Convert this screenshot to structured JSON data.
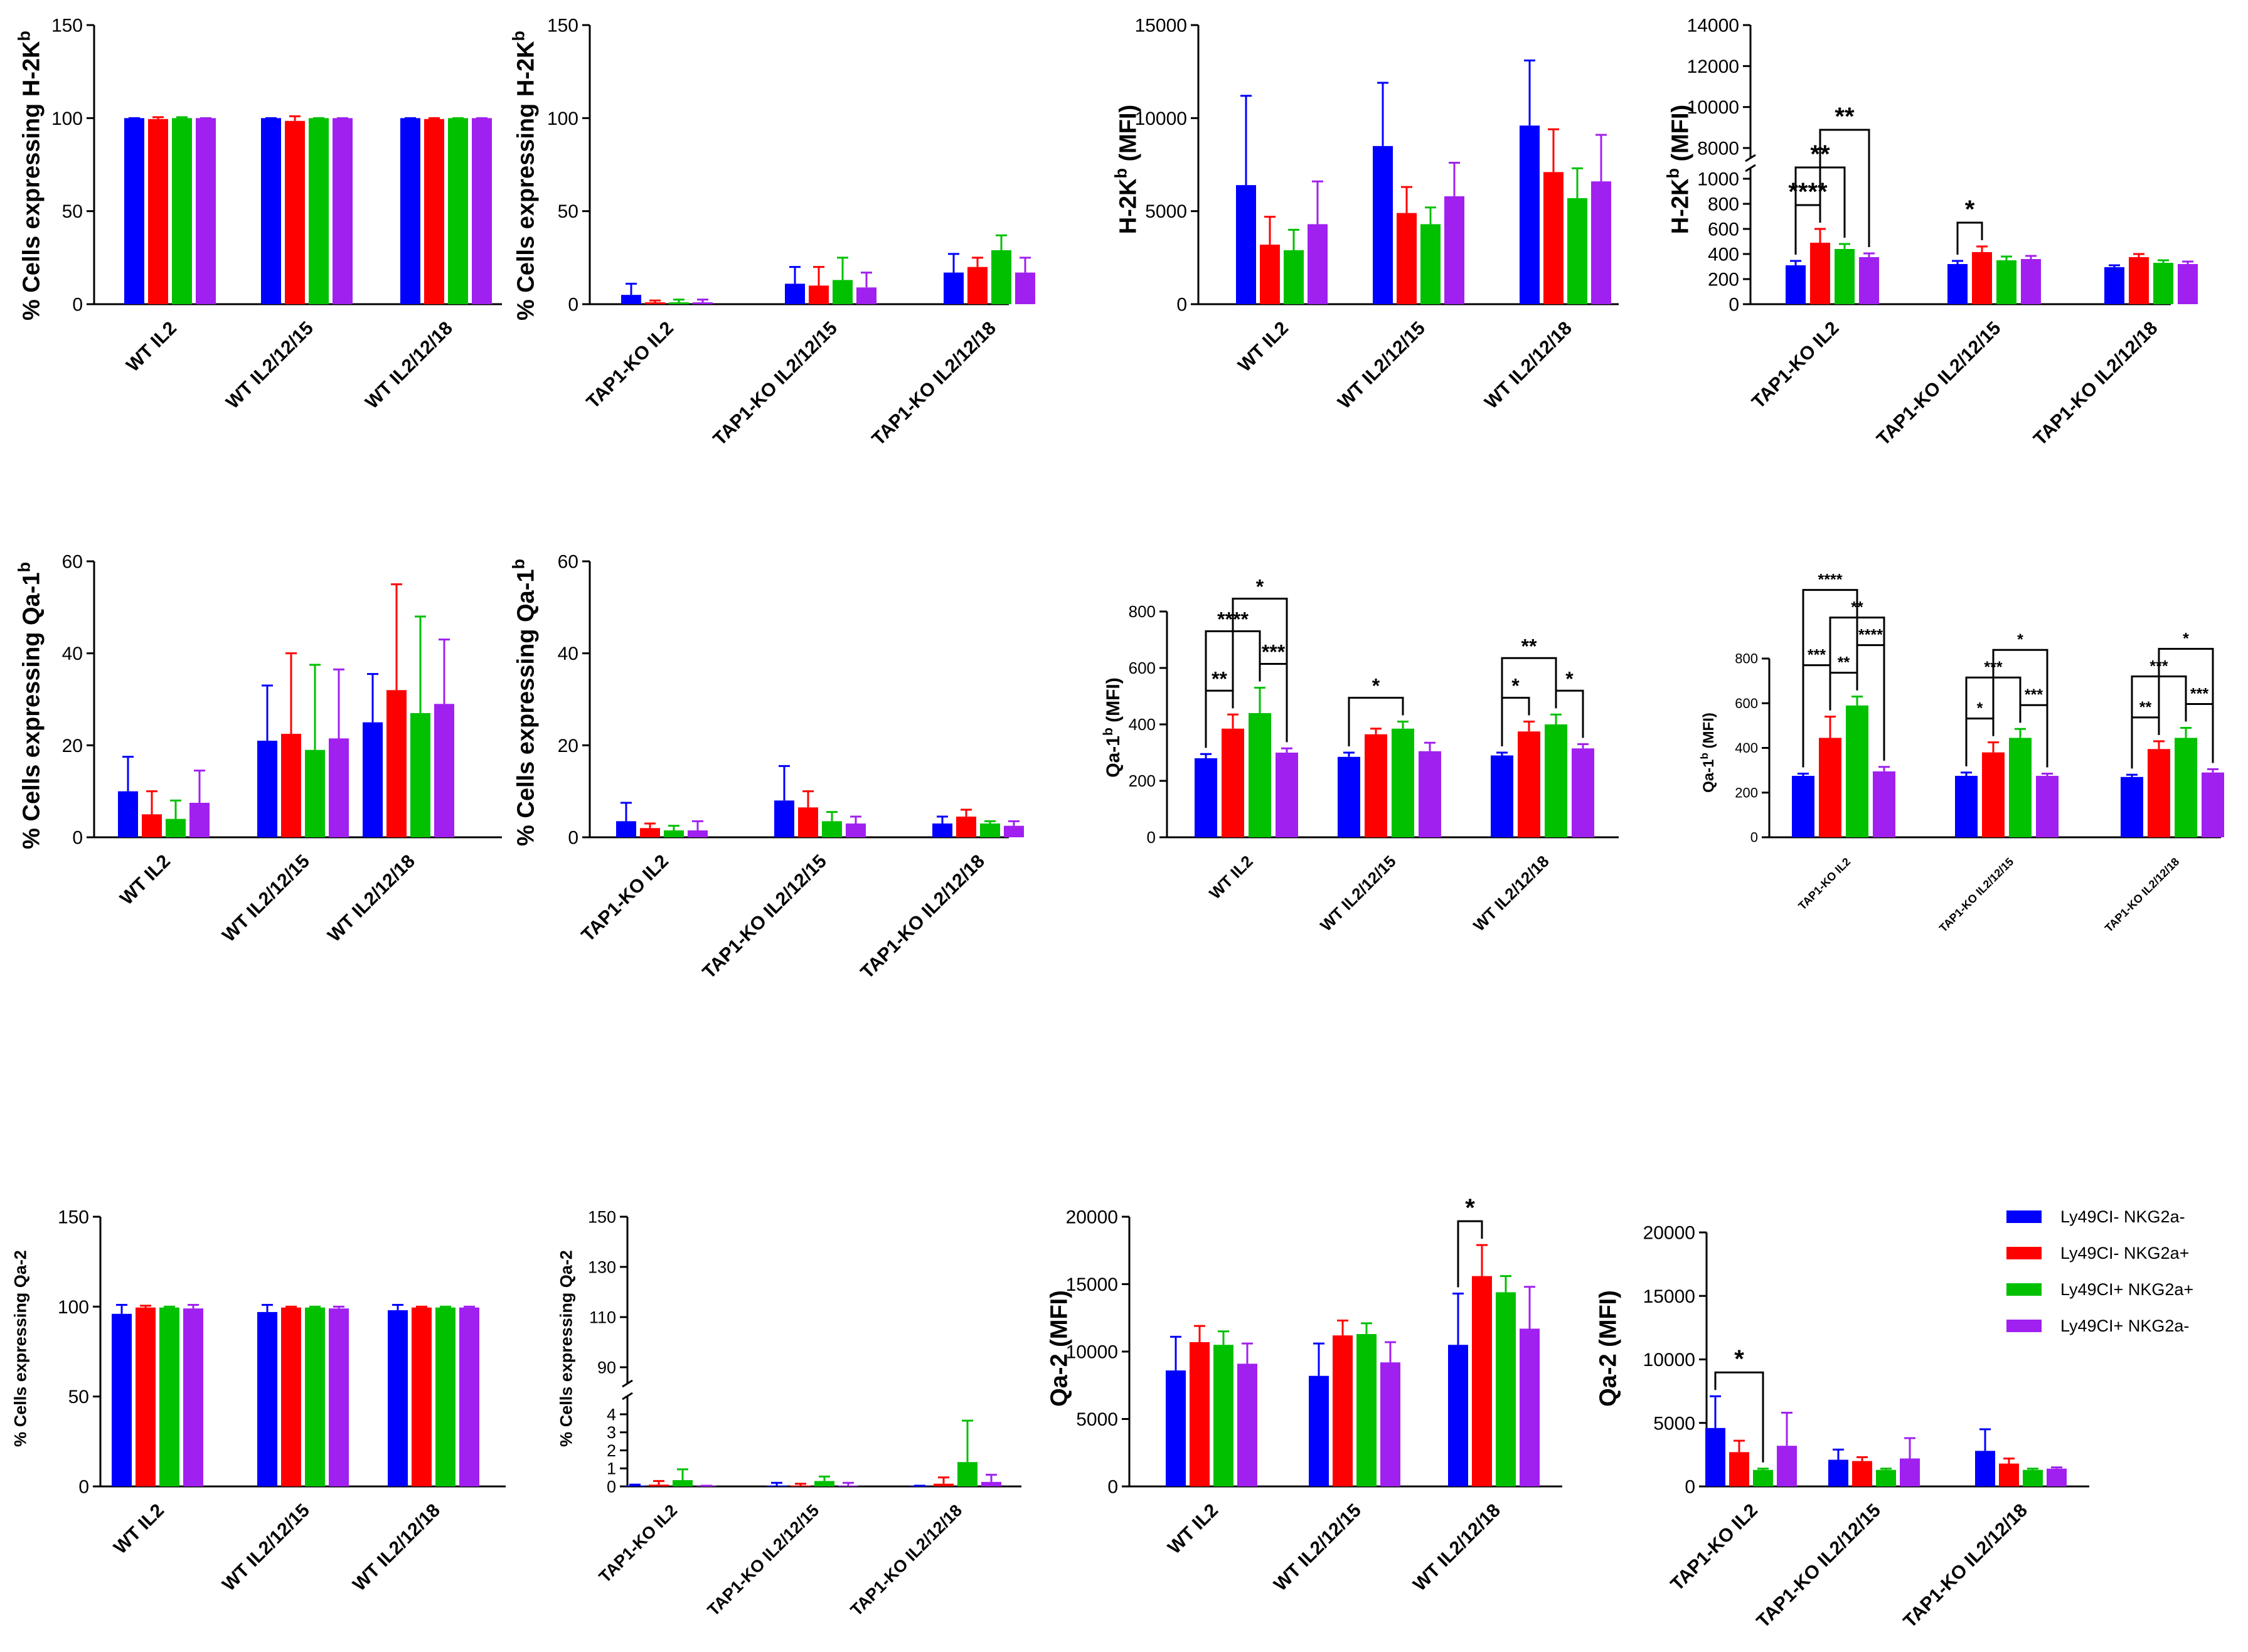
{
  "colors": {
    "blue": "#0000ff",
    "red": "#ff0000",
    "green": "#00c000",
    "purple": "#a020f0",
    "axis": "#000000"
  },
  "legend": {
    "entries": [
      {
        "label": "Ly49CI- NKG2a-",
        "color": "#0000ff"
      },
      {
        "label": "Ly49CI- NKG2a+",
        "color": "#ff0000"
      },
      {
        "label": "Ly49CI+ NKG2a+",
        "color": "#00c000"
      },
      {
        "label": "Ly49CI+ NKG2a-",
        "color": "#a020f0"
      }
    ]
  },
  "chart_data": [
    {
      "id": "A1",
      "type": "bar",
      "ylabel": "% Cells expressing H-2K",
      "ylabel_sup": "b",
      "ylim": [
        0,
        150
      ],
      "ticks": [
        0,
        50,
        100,
        150
      ],
      "categories": [
        "WT IL2",
        "WT IL2/12/15",
        "WT IL2/12/18"
      ],
      "values": [
        [
          100,
          99.5,
          100,
          100
        ],
        [
          100,
          98.5,
          100,
          100
        ],
        [
          100,
          99.5,
          100,
          100
        ]
      ],
      "errors": [
        [
          0,
          1,
          0.5,
          0
        ],
        [
          0,
          2.5,
          0,
          0
        ],
        [
          0,
          0.5,
          0,
          0
        ]
      ],
      "sig": []
    },
    {
      "id": "A2",
      "type": "bar",
      "ylabel": "% Cells expressing H-2K",
      "ylabel_sup": "b",
      "ylim": [
        0,
        150
      ],
      "ticks": [
        0,
        50,
        100,
        150
      ],
      "categories": [
        "TAP1-KO IL2",
        "TAP1-KO IL2/12/15",
        "TAP1-KO IL2/12/18"
      ],
      "values": [
        [
          5,
          1,
          1,
          1
        ],
        [
          11,
          10,
          13,
          9
        ],
        [
          17,
          20,
          29,
          17
        ]
      ],
      "errors": [
        [
          6,
          1,
          1.5,
          1.5
        ],
        [
          9,
          10,
          12,
          8
        ],
        [
          10,
          5,
          8,
          8
        ]
      ],
      "sig": []
    },
    {
      "id": "A3",
      "type": "bar",
      "ylabel": "H-2K",
      "ylabel_sup": "b",
      "ylabel_suffix": " (MFI)",
      "ylim": [
        0,
        15000
      ],
      "ticks": [
        0,
        5000,
        10000,
        15000
      ],
      "categories": [
        "WT IL2",
        "WT IL2/12/15",
        "WT IL2/12/18"
      ],
      "values": [
        [
          6400,
          3200,
          2900,
          4300
        ],
        [
          8500,
          4900,
          4300,
          5800
        ],
        [
          9600,
          7100,
          5700,
          6600
        ]
      ],
      "errors": [
        [
          4800,
          1500,
          1100,
          2300
        ],
        [
          3400,
          1400,
          900,
          1800
        ],
        [
          3500,
          2300,
          1600,
          2500
        ]
      ],
      "sig": []
    },
    {
      "id": "A4",
      "type": "bar",
      "ylabel": "H-2K",
      "ylabel_sup": "b",
      "ylabel_suffix": " (MFI)",
      "ylim": [
        0,
        14000
      ],
      "break": [
        1000,
        8000
      ],
      "ticks": [
        0,
        200,
        400,
        600,
        800,
        1000,
        8000,
        10000,
        12000,
        14000
      ],
      "categories": [
        "TAP1-KO IL2",
        "TAP1-KO IL2/12/15",
        "TAP1-KO IL2/12/18"
      ],
      "values": [
        [
          310,
          490,
          440,
          375
        ],
        [
          320,
          415,
          350,
          360
        ],
        [
          295,
          375,
          330,
          320
        ]
      ],
      "errors": [
        [
          35,
          110,
          40,
          30
        ],
        [
          25,
          45,
          30,
          25
        ],
        [
          15,
          25,
          20,
          20
        ]
      ],
      "sig": [
        {
          "g": 0,
          "a": 0,
          "b": 1,
          "label": "****",
          "level": 0
        },
        {
          "g": 0,
          "a": 0,
          "b": 2,
          "label": "**",
          "level": 1
        },
        {
          "g": 0,
          "a": 1,
          "b": 3,
          "label": "**",
          "level": 2
        },
        {
          "g": 1,
          "a": 0,
          "b": 1,
          "label": "*",
          "level": 0
        }
      ]
    },
    {
      "id": "B1",
      "type": "bar",
      "ylabel": "% Cells expressing Qa-1",
      "ylabel_sup": "b",
      "ylim": [
        0,
        60
      ],
      "ticks": [
        0,
        20,
        40,
        60
      ],
      "categories": [
        "WT IL2",
        "WT IL2/12/15",
        "WT IL2/12/18"
      ],
      "values": [
        [
          10,
          5,
          4,
          7.5
        ],
        [
          21,
          22.5,
          19,
          21.5
        ],
        [
          25,
          32,
          27,
          29
        ]
      ],
      "errors": [
        [
          7.5,
          5,
          4,
          7
        ],
        [
          12,
          17.5,
          18.5,
          15
        ],
        [
          10.5,
          23,
          21,
          14
        ]
      ],
      "sig": []
    },
    {
      "id": "B2",
      "type": "bar",
      "ylabel": "% Cells expressing Qa-1",
      "ylabel_sup": "b",
      "ylim": [
        0,
        60
      ],
      "ticks": [
        0,
        20,
        40,
        60
      ],
      "categories": [
        "TAP1-KO IL2",
        "TAP1-KO IL2/12/15",
        "TAP1-KO IL2/12/18"
      ],
      "values": [
        [
          3.5,
          2,
          1.5,
          1.5
        ],
        [
          8,
          6.5,
          3.5,
          3
        ],
        [
          3,
          4.5,
          3,
          2.5
        ]
      ],
      "errors": [
        [
          4,
          1,
          1,
          2
        ],
        [
          7.5,
          3.5,
          2,
          1.5
        ],
        [
          1.5,
          1.5,
          0.5,
          1
        ]
      ],
      "sig": []
    },
    {
      "id": "B3",
      "type": "bar",
      "ylabel": "Qa-1",
      "ylabel_sup": "b",
      "ylabel_suffix": " (MFI)",
      "ylim": [
        0,
        800
      ],
      "ticks": [
        0,
        200,
        400,
        600,
        800
      ],
      "categories": [
        "WT IL2",
        "WT IL2/12/15",
        "WT IL2/12/18"
      ],
      "values": [
        [
          280,
          385,
          440,
          300
        ],
        [
          285,
          365,
          385,
          305
        ],
        [
          290,
          375,
          400,
          315
        ]
      ],
      "errors": [
        [
          15,
          50,
          90,
          15
        ],
        [
          15,
          20,
          25,
          30
        ],
        [
          10,
          35,
          35,
          15
        ]
      ],
      "sig": [
        {
          "g": 0,
          "a": 0,
          "b": 1,
          "label": "**",
          "level": 0
        },
        {
          "g": 0,
          "a": 2,
          "b": 3,
          "label": "***",
          "level": 0
        },
        {
          "g": 0,
          "a": 0,
          "b": 2,
          "label": "****",
          "level": 1
        },
        {
          "g": 0,
          "a": 1,
          "b": 3,
          "label": "*",
          "level": 2
        },
        {
          "g": 1,
          "a": 0,
          "b": 2,
          "label": "*",
          "level": 0
        },
        {
          "g": 2,
          "a": 0,
          "b": 1,
          "label": "*",
          "level": 0
        },
        {
          "g": 2,
          "a": 2,
          "b": 3,
          "label": "*",
          "level": 0
        },
        {
          "g": 2,
          "a": 0,
          "b": 2,
          "label": "**",
          "level": 1
        }
      ]
    },
    {
      "id": "B4",
      "type": "bar",
      "ylabel": "Qa-1",
      "ylabel_sup": "b",
      "ylabel_suffix": " (MFI)",
      "ylim": [
        0,
        800
      ],
      "ticks": [
        0,
        200,
        400,
        600,
        800
      ],
      "categories": [
        "TAP1-KO IL2",
        "TAP1-KO IL2/12/15",
        "TAP1-KO IL2/12/18"
      ],
      "values": [
        [
          275,
          445,
          590,
          295
        ],
        [
          275,
          380,
          445,
          275
        ],
        [
          270,
          395,
          445,
          290
        ]
      ],
      "errors": [
        [
          10,
          95,
          40,
          20
        ],
        [
          15,
          45,
          40,
          10
        ],
        [
          10,
          35,
          45,
          15
        ]
      ],
      "sig": [
        {
          "g": 0,
          "a": 1,
          "b": 2,
          "label": "**",
          "level": 0
        },
        {
          "g": 0,
          "a": 0,
          "b": 1,
          "label": "***",
          "level": 1
        },
        {
          "g": 0,
          "a": 2,
          "b": 3,
          "label": "****",
          "level": 1
        },
        {
          "g": 0,
          "a": 1,
          "b": 3,
          "label": "**",
          "level": 2
        },
        {
          "g": 0,
          "a": 0,
          "b": 2,
          "label": "****",
          "level": 3
        },
        {
          "g": 1,
          "a": 0,
          "b": 1,
          "label": "*",
          "level": 0
        },
        {
          "g": 1,
          "a": 2,
          "b": 3,
          "label": "***",
          "level": 0
        },
        {
          "g": 1,
          "a": 0,
          "b": 2,
          "label": "***",
          "level": 1
        },
        {
          "g": 1,
          "a": 1,
          "b": 3,
          "label": "*",
          "level": 2
        },
        {
          "g": 2,
          "a": 0,
          "b": 1,
          "label": "**",
          "level": 0
        },
        {
          "g": 2,
          "a": 2,
          "b": 3,
          "label": "***",
          "level": 0
        },
        {
          "g": 2,
          "a": 0,
          "b": 2,
          "label": "***",
          "level": 1
        },
        {
          "g": 2,
          "a": 1,
          "b": 3,
          "label": "*",
          "level": 2
        }
      ]
    },
    {
      "id": "C1",
      "type": "bar",
      "ylabel": "% Cells expressing Qa-2",
      "ylim": [
        0,
        150
      ],
      "ticks": [
        0,
        50,
        100,
        150
      ],
      "categories": [
        "WT IL2",
        "WT IL2/12/15",
        "WT IL2/12/18"
      ],
      "values": [
        [
          96,
          99.5,
          99.5,
          99
        ],
        [
          97,
          99.5,
          99.5,
          99
        ],
        [
          98,
          99.5,
          99.5,
          99.5
        ]
      ],
      "errors": [
        [
          5,
          1,
          0.5,
          2
        ],
        [
          4,
          0.5,
          0.5,
          1
        ],
        [
          3,
          0.5,
          0.5,
          0.5
        ]
      ],
      "sig": []
    },
    {
      "id": "C2",
      "type": "bar",
      "ylabel": "% Cells expressing Qa-2",
      "ylim": [
        0,
        150
      ],
      "break": [
        4,
        90
      ],
      "ticks": [
        0,
        1,
        2,
        3,
        4,
        90,
        110,
        130,
        150
      ],
      "categories": [
        "TAP1-KO IL2",
        "TAP1-KO IL2/12/15",
        "TAP1-KO IL2/12/18"
      ],
      "values": [
        [
          0.05,
          0.1,
          0.35,
          0.02
        ],
        [
          0.05,
          0.05,
          0.3,
          0.05
        ],
        [
          0.02,
          0.15,
          1.35,
          0.25
        ]
      ],
      "errors": [
        [
          0.05,
          0.2,
          0.6,
          0.02
        ],
        [
          0.15,
          0.1,
          0.25,
          0.15
        ],
        [
          0.02,
          0.35,
          2.3,
          0.4
        ]
      ],
      "sig": []
    },
    {
      "id": "C3",
      "type": "bar",
      "ylabel": "Qa-2 (MFI)",
      "ylim": [
        0,
        20000
      ],
      "ticks": [
        0,
        5000,
        10000,
        15000,
        20000
      ],
      "categories": [
        "WT IL2",
        "WT IL2/12/15",
        "WT IL2/12/18"
      ],
      "values": [
        [
          8600,
          10700,
          10500,
          9100
        ],
        [
          8200,
          11200,
          11300,
          9200
        ],
        [
          10500,
          15600,
          14400,
          11700
        ]
      ],
      "errors": [
        [
          2500,
          1200,
          1000,
          1500
        ],
        [
          2400,
          1100,
          800,
          1500
        ],
        [
          3800,
          2300,
          1200,
          3100
        ]
      ],
      "sig": [
        {
          "g": 2,
          "a": 0,
          "b": 1,
          "label": "*",
          "level": 0
        }
      ]
    },
    {
      "id": "C4",
      "type": "bar",
      "ylabel": "Qa-2 (MFI)",
      "ylim": [
        0,
        20000
      ],
      "ticks": [
        0,
        5000,
        10000,
        15000,
        20000
      ],
      "categories": [
        "TAP1-KO IL2",
        "TAP1-KO IL2/12/15",
        "TAP1-KO IL2/12/18"
      ],
      "values": [
        [
          4600,
          2700,
          1300,
          3200
        ],
        [
          2100,
          2000,
          1300,
          2200
        ],
        [
          2800,
          1800,
          1300,
          1400
        ]
      ],
      "errors": [
        [
          2500,
          900,
          100,
          2600
        ],
        [
          800,
          300,
          100,
          1600
        ],
        [
          1700,
          400,
          100,
          100
        ]
      ],
      "sig": [
        {
          "g": 0,
          "a": 0,
          "b": 2,
          "label": "*",
          "level": 0
        }
      ]
    }
  ]
}
